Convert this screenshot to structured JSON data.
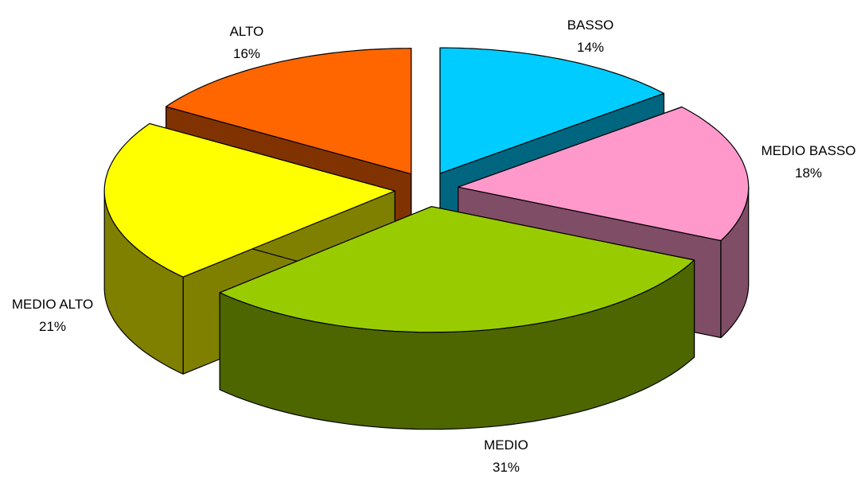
{
  "chart_data": {
    "type": "pie",
    "title": "",
    "slices": [
      {
        "label": "BASSO",
        "value": 14,
        "percent_label": "14%",
        "color": "#00CCFF",
        "side_color": "#006680"
      },
      {
        "label": "MEDIO BASSO",
        "value": 18,
        "percent_label": "18%",
        "color": "#FF99CC",
        "side_color": "#804D66"
      },
      {
        "label": "MEDIO",
        "value": 31,
        "percent_label": "31%",
        "color": "#99CC00",
        "side_color": "#4D6600"
      },
      {
        "label": "MEDIO ALTO",
        "value": 21,
        "percent_label": "21%",
        "color": "#FFFF00",
        "side_color": "#808000"
      },
      {
        "label": "ALTO",
        "value": 16,
        "percent_label": "16%",
        "color": "#FF6600",
        "side_color": "#803300"
      }
    ],
    "style": "3d-exploded",
    "legend": "none",
    "data_labels": "category-and-percent"
  }
}
